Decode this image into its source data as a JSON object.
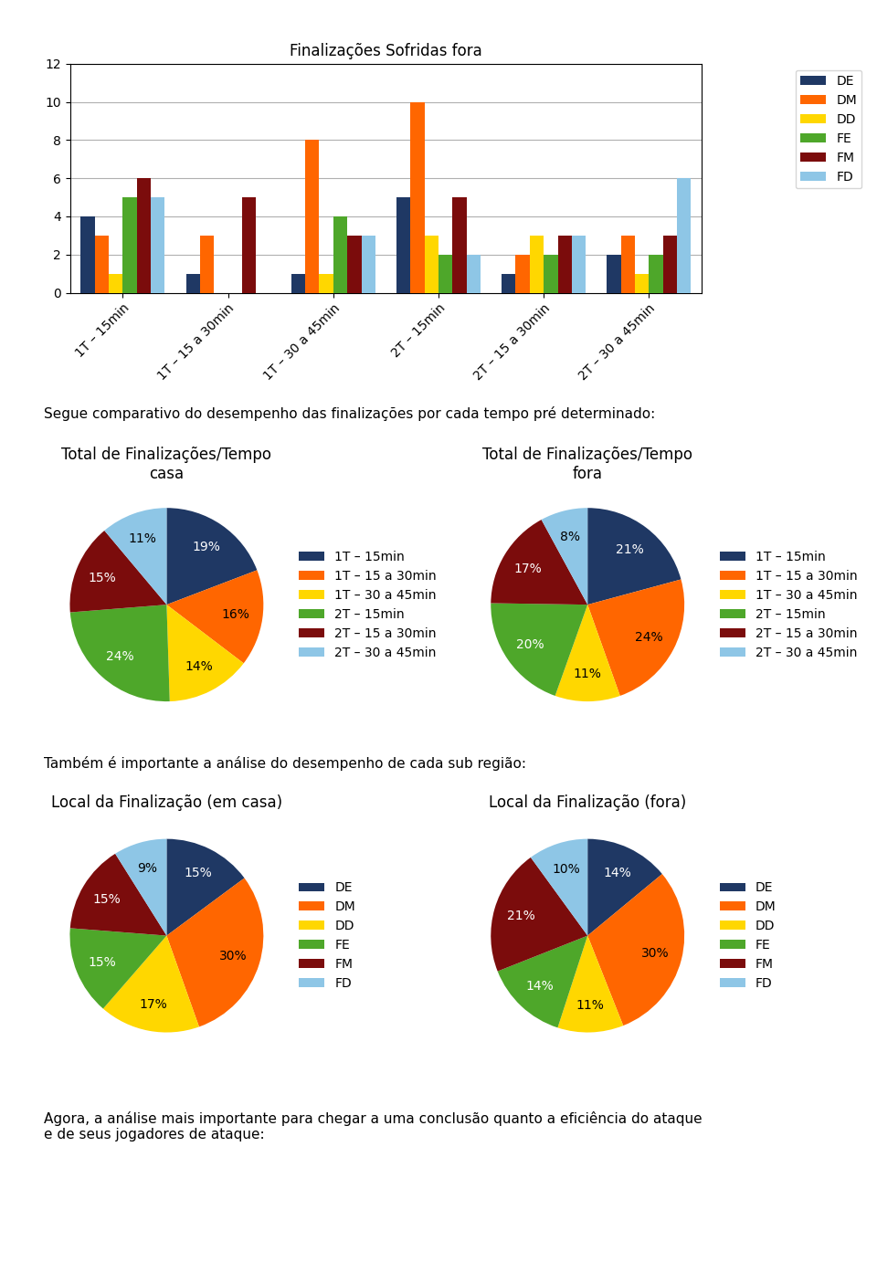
{
  "chart_data": [
    {
      "type": "bar",
      "title": "Finalizações Sofridas fora",
      "categories": [
        "1T – 15min",
        "1T – 15 a 30min",
        "1T – 30 a 45min",
        "2T – 15min",
        "2T – 15 a 30min",
        "2T – 30 a 45min"
      ],
      "series": [
        {
          "name": "DE",
          "color": "#1F3864",
          "values": [
            4,
            1,
            1,
            5,
            1,
            2
          ]
        },
        {
          "name": "DM",
          "color": "#FF6600",
          "values": [
            3,
            3,
            8,
            10,
            2,
            3
          ]
        },
        {
          "name": "DD",
          "color": "#FFD700",
          "values": [
            1,
            0,
            1,
            3,
            3,
            1
          ]
        },
        {
          "name": "FE",
          "color": "#4EA72A",
          "values": [
            5,
            0,
            4,
            2,
            2,
            2
          ]
        },
        {
          "name": "FM",
          "color": "#7B0C0C",
          "values": [
            6,
            5,
            3,
            5,
            3,
            3
          ]
        },
        {
          "name": "FD",
          "color": "#8EC6E6",
          "values": [
            5,
            0,
            3,
            2,
            3,
            6
          ]
        }
      ],
      "ylim": [
        0,
        12
      ],
      "yticks": [
        0,
        2,
        4,
        6,
        8,
        10,
        12
      ],
      "grid": true,
      "legend": "upper right",
      "annotations": [
        "Segue comparativo do desempenho das finalizações por cada tempo pré determinado:"
      ]
    },
    {
      "type": "pie",
      "title": "Total de Finalizações/Tempo\ncasa",
      "categories": [
        "1T – 15min",
        "1T – 15 a 30min",
        "1T – 30 a 45min",
        "2T – 15min",
        "2T – 15 a 30min",
        "2T – 30 a 45min"
      ],
      "values": [
        19,
        16,
        14,
        24,
        15,
        11
      ],
      "value_labels": [
        "19%",
        "16%",
        "14%",
        "24%",
        "15%",
        "11%"
      ],
      "colors": [
        "#1F3864",
        "#FF6600",
        "#FFD700",
        "#4EA72A",
        "#7B0C0C",
        "#8EC6E6"
      ],
      "data_labels": true,
      "legend": "center left"
    },
    {
      "type": "pie",
      "title": "Total de Finalizações/Tempo\nfora",
      "categories": [
        "1T – 15min",
        "1T – 15 a 30min",
        "1T – 30 a 45min",
        "2T – 15min",
        "2T – 15 a 30min",
        "2T – 30 a 45min"
      ],
      "values": [
        21,
        24,
        11,
        20,
        17,
        8
      ],
      "value_labels": [
        "21%",
        "24%",
        "11%",
        "20%",
        "17%",
        "8%"
      ],
      "colors": [
        "#1F3864",
        "#FF6600",
        "#FFD700",
        "#4EA72A",
        "#7B0C0C",
        "#8EC6E6"
      ],
      "data_labels": true,
      "legend": "center left",
      "annotations": [
        "Também é importante a análise do desempenho de cada sub região:"
      ]
    },
    {
      "type": "pie",
      "title": "Local da Finalização (em casa)",
      "categories": [
        "DE",
        "DM",
        "DD",
        "FE",
        "FM",
        "FD"
      ],
      "values": [
        15,
        30,
        17,
        15,
        15,
        9
      ],
      "value_labels": [
        "15%",
        "30%",
        "17%",
        "15%",
        "15%",
        "9%"
      ],
      "colors": [
        "#1F3864",
        "#FF6600",
        "#FFD700",
        "#4EA72A",
        "#7B0C0C",
        "#8EC6E6"
      ],
      "data_labels": true,
      "legend": "center left"
    },
    {
      "type": "pie",
      "title": "Local da Finalização (fora)",
      "categories": [
        "DE",
        "DM",
        "DD",
        "FE",
        "FM",
        "FD"
      ],
      "values": [
        14,
        30,
        11,
        14,
        21,
        10
      ],
      "value_labels": [
        "14%",
        "30%",
        "11%",
        "14%",
        "21%",
        "10%"
      ],
      "colors": [
        "#1F3864",
        "#FF6600",
        "#FFD700",
        "#4EA72A",
        "#7B0C0C",
        "#8EC6E6"
      ],
      "data_labels": true,
      "legend": "center left",
      "annotations": [
        "Agora, a análise mais importante para chegar a uma conclusão quanto a eficiência do ataque\ne de seus jogadores de ataque:"
      ]
    }
  ]
}
